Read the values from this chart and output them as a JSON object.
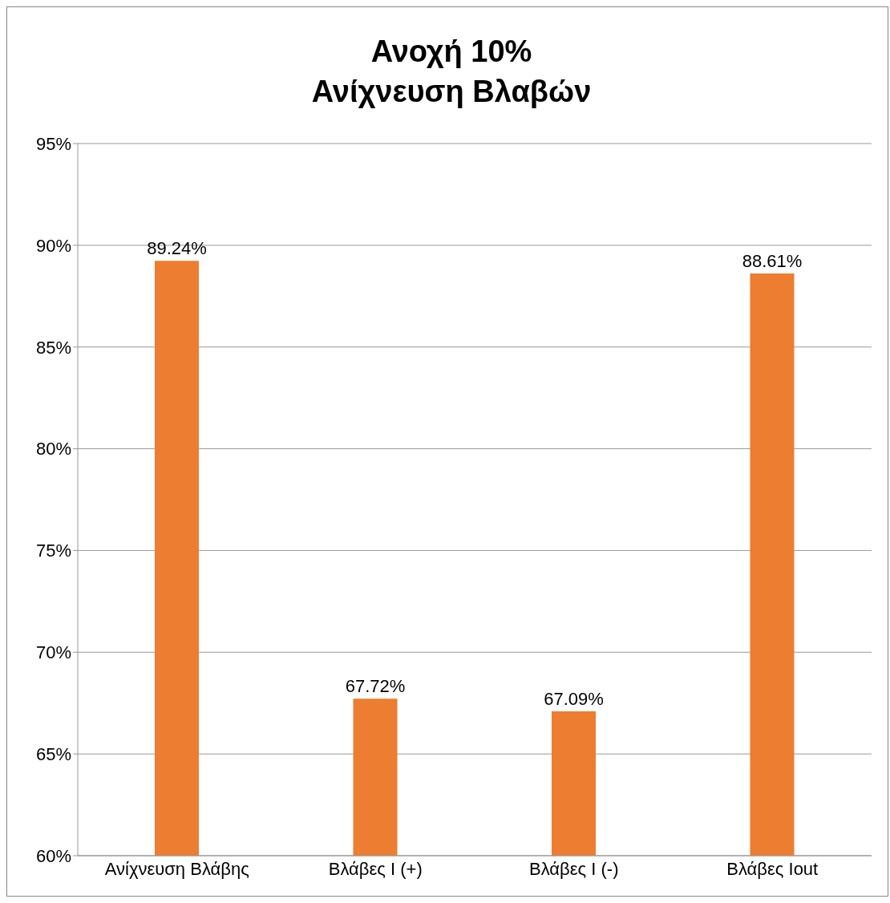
{
  "chart_data": {
    "type": "bar",
    "title": "Ανοχή 10%\nΑνίχνευση Βλαβών",
    "categories": [
      "Ανίχνευση Βλάβης",
      "Βλάβες Ι (+)",
      "Βλάβες Ι (-)",
      "Βλάβες Ιout"
    ],
    "values": [
      89.24,
      67.72,
      67.09,
      88.61
    ],
    "value_labels": [
      "89.24%",
      "67.72%",
      "67.09%",
      "88.61%"
    ],
    "color": "#ed7d31",
    "ylim": [
      60,
      95
    ],
    "yticks": [
      {
        "value": 60,
        "label": "60%"
      },
      {
        "value": 65,
        "label": "65%"
      },
      {
        "value": 70,
        "label": "70%"
      },
      {
        "value": 75,
        "label": "75%"
      },
      {
        "value": 80,
        "label": "80%"
      },
      {
        "value": 85,
        "label": "85%"
      },
      {
        "value": 90,
        "label": "90%"
      },
      {
        "value": 95,
        "label": "95%"
      }
    ],
    "grid": "y"
  }
}
